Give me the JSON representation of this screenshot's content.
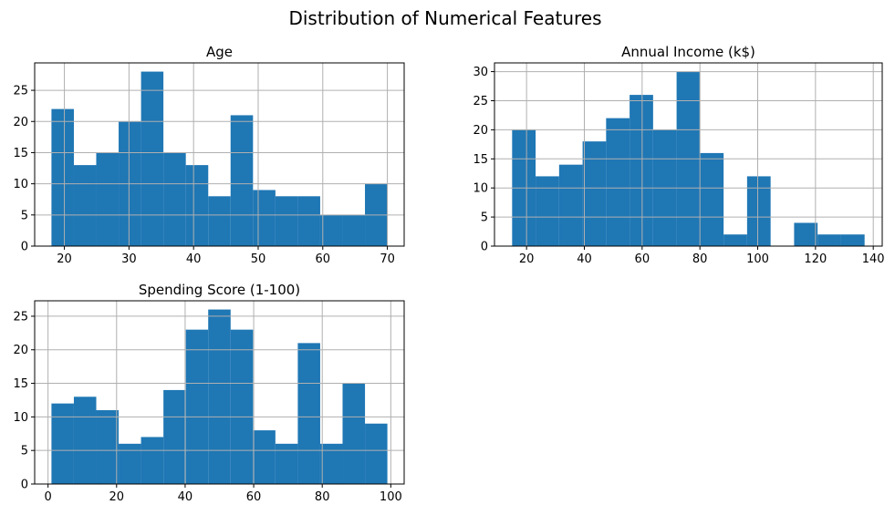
{
  "figure_title": "Distribution of Numerical Features",
  "chart_data": [
    {
      "type": "bar",
      "title": "Age",
      "color": "#1f77b4",
      "grid": true,
      "bin_edges": [
        18,
        21.47,
        24.93,
        28.4,
        31.87,
        35.33,
        38.8,
        42.27,
        45.73,
        49.2,
        52.67,
        56.13,
        59.6,
        63.07,
        66.53,
        70
      ],
      "values": [
        22,
        13,
        15,
        20,
        28,
        15,
        13,
        8,
        21,
        9,
        8,
        8,
        5,
        5,
        10
      ],
      "xlim": [
        15.4,
        72.6
      ],
      "ylim": [
        0,
        29.4
      ],
      "xticks": [
        20,
        30,
        40,
        50,
        60,
        70
      ],
      "yticks": [
        0,
        5,
        10,
        15,
        20,
        25
      ]
    },
    {
      "type": "bar",
      "title": "Annual Income (k$)",
      "color": "#1f77b4",
      "grid": true,
      "bin_edges": [
        15,
        23.13,
        31.27,
        39.4,
        47.53,
        55.67,
        63.8,
        71.93,
        80.07,
        88.2,
        96.33,
        104.47,
        112.6,
        120.73,
        128.87,
        137
      ],
      "values": [
        20,
        12,
        14,
        18,
        22,
        26,
        20,
        30,
        16,
        2,
        12,
        0,
        4,
        2,
        2
      ],
      "xlim": [
        8.9,
        143.1
      ],
      "ylim": [
        0,
        31.5
      ],
      "xticks": [
        20,
        40,
        60,
        80,
        100,
        120,
        140
      ],
      "yticks": [
        0,
        5,
        10,
        15,
        20,
        25,
        30
      ]
    },
    {
      "type": "bar",
      "title": "Spending Score (1-100)",
      "color": "#1f77b4",
      "grid": true,
      "bin_edges": [
        1,
        7.53,
        14.07,
        20.6,
        27.13,
        33.67,
        40.2,
        46.73,
        53.27,
        59.8,
        66.33,
        72.87,
        79.4,
        85.93,
        92.47,
        99
      ],
      "values": [
        12,
        13,
        11,
        6,
        7,
        14,
        23,
        26,
        23,
        8,
        6,
        21,
        6,
        15,
        9
      ],
      "xlim": [
        -3.9,
        103.9
      ],
      "ylim": [
        0,
        27.3
      ],
      "xticks": [
        0,
        20,
        40,
        60,
        80,
        100
      ],
      "yticks": [
        0,
        5,
        10,
        15,
        20,
        25
      ]
    }
  ]
}
